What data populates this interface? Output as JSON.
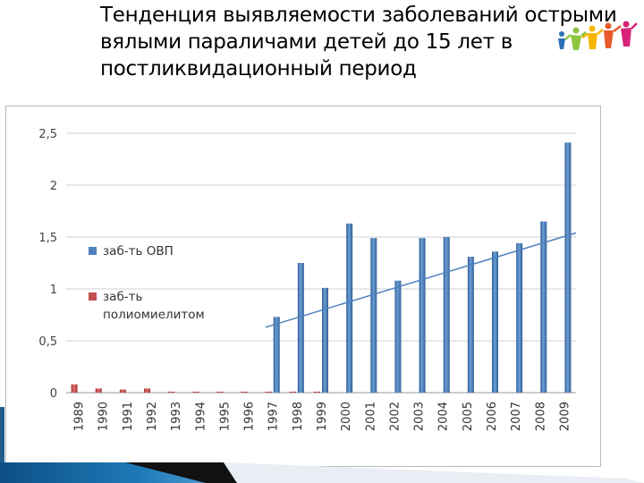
{
  "slide": {
    "title_lines": [
      "Тенденция выявляемости заболеваний острыми",
      "вялыми параличами детей до 15 лет  в",
      "постликвидационный период"
    ]
  },
  "colors": {
    "series_ovp": "#4f81bd",
    "series_polio": "#c0504d",
    "trendline": "#4f81bd",
    "gridline": "#d0d0d0",
    "footer_accent": "#1f7ab8"
  },
  "icons": [
    "people-figures-icon"
  ],
  "chart_data": {
    "type": "bar",
    "categories": [
      "1989",
      "1990",
      "1991",
      "1992",
      "1993",
      "1994",
      "1995",
      "1996",
      "1997",
      "1998",
      "1999",
      "2000",
      "2001",
      "2002",
      "2003",
      "2004",
      "2005",
      "2006",
      "2007",
      "2008",
      "2009"
    ],
    "series": [
      {
        "name": "заб-ть ОВП",
        "values": [
          0,
          0,
          0,
          0,
          0,
          0,
          0,
          0,
          0.73,
          1.25,
          1.01,
          1.63,
          1.49,
          1.08,
          1.49,
          1.5,
          1.31,
          1.36,
          1.44,
          1.65,
          2.41
        ]
      },
      {
        "name": "заб-ть полиомиелитом",
        "values": [
          0.08,
          0.04,
          0.03,
          0.04,
          0.01,
          0.01,
          0.01,
          0.01,
          0.01,
          0.01,
          0.01,
          0,
          0,
          0,
          0,
          0,
          0,
          0,
          0,
          0,
          0
        ]
      }
    ],
    "trendline": {
      "series": "заб-ть ОВП",
      "type": "linear",
      "from": {
        "x": "1997",
        "y": 0.63
      },
      "to": {
        "x": "2009",
        "y": 1.54
      }
    },
    "y_ticks": [
      "0",
      "0,5",
      "1",
      "1,5",
      "2",
      "2,5"
    ],
    "y_tick_values": [
      0,
      0.5,
      1,
      1.5,
      2,
      2.5
    ],
    "ylim": [
      0,
      2.5
    ],
    "grid": true,
    "legend_position": "left-inside",
    "title": "",
    "xlabel": "",
    "ylabel": ""
  }
}
